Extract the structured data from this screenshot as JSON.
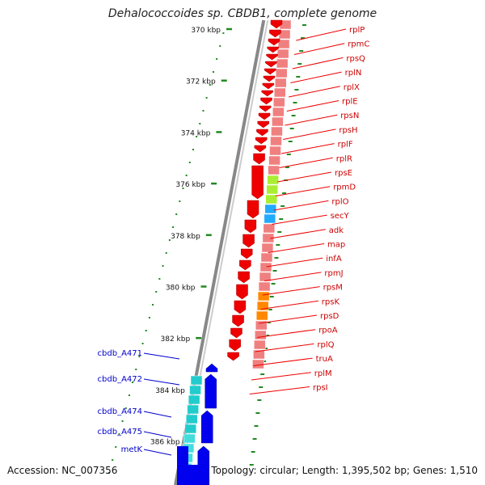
{
  "title": "Dehalococcoides sp. CBDB1, complete genome",
  "footer": {
    "accession": "Accession: NC_007356",
    "summary": "Topology: circular; Length: 1,395,502 bp; Genes: 1,510"
  },
  "ticks": [
    "370 kbp",
    "372 kbp",
    "374 kbp",
    "376 kbp",
    "378 kbp",
    "380 kbp",
    "382 kbp",
    "384 kbp",
    "386 kbp"
  ],
  "right_genes": [
    "rplP",
    "rpmC",
    "rpsQ",
    "rplN",
    "rplX",
    "rplE",
    "rpsN",
    "rpsH",
    "rplF",
    "rplR",
    "rpsE",
    "rpmD",
    "rplO",
    "secY",
    "adk",
    "map",
    "infA",
    "rpmJ",
    "rpsM",
    "rpsK",
    "rpsD",
    "rpoA",
    "rplQ",
    "truA",
    "rplM",
    "rpsI"
  ],
  "left_genes": [
    "cbdb_A471",
    "cbdb_A472",
    "cbdb_A474",
    "cbdb_A475",
    "metK"
  ],
  "colors": {
    "forward_gene": "#ee0000",
    "reverse_gene": "#0000ee",
    "category_band": "#f08080",
    "band_green": "#aaee33",
    "band_blue": "#22aaff",
    "band_orange": "#ff8800",
    "band_cyan": "#22cccc",
    "tick_mark": "#228822",
    "backbone": "#888888"
  }
}
